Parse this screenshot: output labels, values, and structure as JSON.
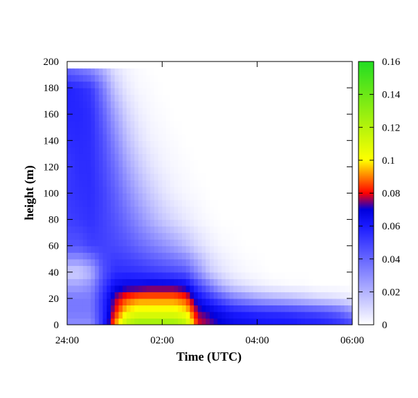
{
  "chart_data": {
    "type": "heatmap",
    "title": "",
    "xlabel": "Time (UTC)",
    "ylabel": "height (m)",
    "x_unit": "hours after 24:00",
    "xlim": [
      0,
      6
    ],
    "ylim": [
      0,
      200
    ],
    "x_ticks": [
      {
        "value": 0,
        "label": "24:00"
      },
      {
        "value": 2,
        "label": "02:00"
      },
      {
        "value": 4,
        "label": "04:00"
      },
      {
        "value": 6,
        "label": "06:00"
      }
    ],
    "y_ticks": [
      0,
      20,
      40,
      60,
      80,
      100,
      120,
      140,
      160,
      180,
      200
    ],
    "colorbar": {
      "range": [
        0,
        0.16
      ],
      "ticks": [
        0,
        0.02,
        0.04,
        0.06,
        0.08,
        0.1,
        0.12,
        0.14,
        0.16
      ],
      "colors": [
        {
          "value": 0.0,
          "color": "#ffffff"
        },
        {
          "value": 0.06,
          "color": "#1a1aff"
        },
        {
          "value": 0.07,
          "color": "#0000dd"
        },
        {
          "value": 0.08,
          "color": "#ff0000"
        },
        {
          "value": 0.1,
          "color": "#ffff00"
        },
        {
          "value": 0.16,
          "color": "#22dd22"
        }
      ]
    },
    "grid": false,
    "x_times": [
      0,
      0.25,
      0.5,
      0.75,
      1.0,
      1.25,
      1.5,
      1.75,
      2.0,
      2.25,
      2.5,
      2.75,
      3.0,
      3.25,
      3.5,
      3.75,
      4.0,
      4.25,
      4.5,
      4.75,
      5.0,
      5.25,
      5.5,
      5.75,
      6.0
    ],
    "y_heights": [
      0,
      10,
      20,
      30,
      40,
      60,
      80,
      100,
      120,
      140,
      160,
      180,
      195
    ],
    "z_values": [
      [
        0.03,
        0.03,
        0.03,
        0.055,
        0.09,
        0.12,
        0.13,
        0.13,
        0.13,
        0.13,
        0.12,
        0.08,
        0.075,
        0.07,
        0.066,
        0.065,
        0.063,
        0.062,
        0.062,
        0.062,
        0.06,
        0.06,
        0.058,
        0.055,
        0.05
      ],
      [
        0.035,
        0.035,
        0.035,
        0.055,
        0.08,
        0.1,
        0.105,
        0.105,
        0.105,
        0.105,
        0.1,
        0.075,
        0.07,
        0.065,
        0.06,
        0.058,
        0.056,
        0.055,
        0.054,
        0.052,
        0.05,
        0.048,
        0.045,
        0.04,
        0.03
      ],
      [
        0.035,
        0.035,
        0.035,
        0.055,
        0.075,
        0.085,
        0.09,
        0.09,
        0.09,
        0.09,
        0.085,
        0.065,
        0.055,
        0.045,
        0.035,
        0.03,
        0.025,
        0.022,
        0.02,
        0.018,
        0.015,
        0.012,
        0.01,
        0.008,
        0.005
      ],
      [
        0.025,
        0.025,
        0.03,
        0.05,
        0.065,
        0.068,
        0.068,
        0.07,
        0.07,
        0.07,
        0.067,
        0.05,
        0.035,
        0.02,
        0.012,
        0.008,
        0.005,
        0.003,
        0.002,
        0.001,
        0.001,
        0,
        0,
        0,
        0
      ],
      [
        0.012,
        0.012,
        0.02,
        0.045,
        0.055,
        0.055,
        0.054,
        0.052,
        0.05,
        0.048,
        0.045,
        0.03,
        0.015,
        0.008,
        0.004,
        0.002,
        0.001,
        0,
        0,
        0,
        0,
        0,
        0,
        0,
        0
      ],
      [
        0.045,
        0.045,
        0.05,
        0.05,
        0.048,
        0.045,
        0.04,
        0.035,
        0.03,
        0.025,
        0.018,
        0.01,
        0.005,
        0.002,
        0.001,
        0,
        0,
        0,
        0,
        0,
        0,
        0,
        0,
        0,
        0
      ],
      [
        0.05,
        0.052,
        0.054,
        0.05,
        0.045,
        0.038,
        0.03,
        0.022,
        0.015,
        0.01,
        0.006,
        0.003,
        0.001,
        0,
        0,
        0,
        0,
        0,
        0,
        0,
        0,
        0,
        0,
        0,
        0
      ],
      [
        0.052,
        0.054,
        0.055,
        0.05,
        0.042,
        0.032,
        0.022,
        0.014,
        0.008,
        0.004,
        0.002,
        0.001,
        0,
        0,
        0,
        0,
        0,
        0,
        0,
        0,
        0,
        0,
        0,
        0,
        0
      ],
      [
        0.052,
        0.055,
        0.055,
        0.048,
        0.038,
        0.025,
        0.015,
        0.008,
        0.004,
        0.002,
        0.001,
        0,
        0,
        0,
        0,
        0,
        0,
        0,
        0,
        0,
        0,
        0,
        0,
        0,
        0
      ],
      [
        0.055,
        0.056,
        0.055,
        0.046,
        0.032,
        0.018,
        0.009,
        0.004,
        0.002,
        0.001,
        0,
        0,
        0,
        0,
        0,
        0,
        0,
        0,
        0,
        0,
        0,
        0,
        0,
        0,
        0
      ],
      [
        0.057,
        0.057,
        0.055,
        0.042,
        0.025,
        0.012,
        0.005,
        0.002,
        0.001,
        0,
        0,
        0,
        0,
        0,
        0,
        0,
        0,
        0,
        0,
        0,
        0,
        0,
        0,
        0,
        0
      ],
      [
        0.058,
        0.056,
        0.052,
        0.035,
        0.015,
        0.006,
        0.002,
        0.001,
        0,
        0,
        0,
        0,
        0,
        0,
        0,
        0,
        0,
        0,
        0,
        0,
        0,
        0,
        0,
        0,
        0
      ],
      [
        0.04,
        0.035,
        0.03,
        0.02,
        0.008,
        0.003,
        0.001,
        0,
        0,
        0,
        0,
        0,
        0,
        0,
        0,
        0,
        0,
        0,
        0,
        0,
        0,
        0,
        0,
        0,
        0
      ]
    ]
  }
}
